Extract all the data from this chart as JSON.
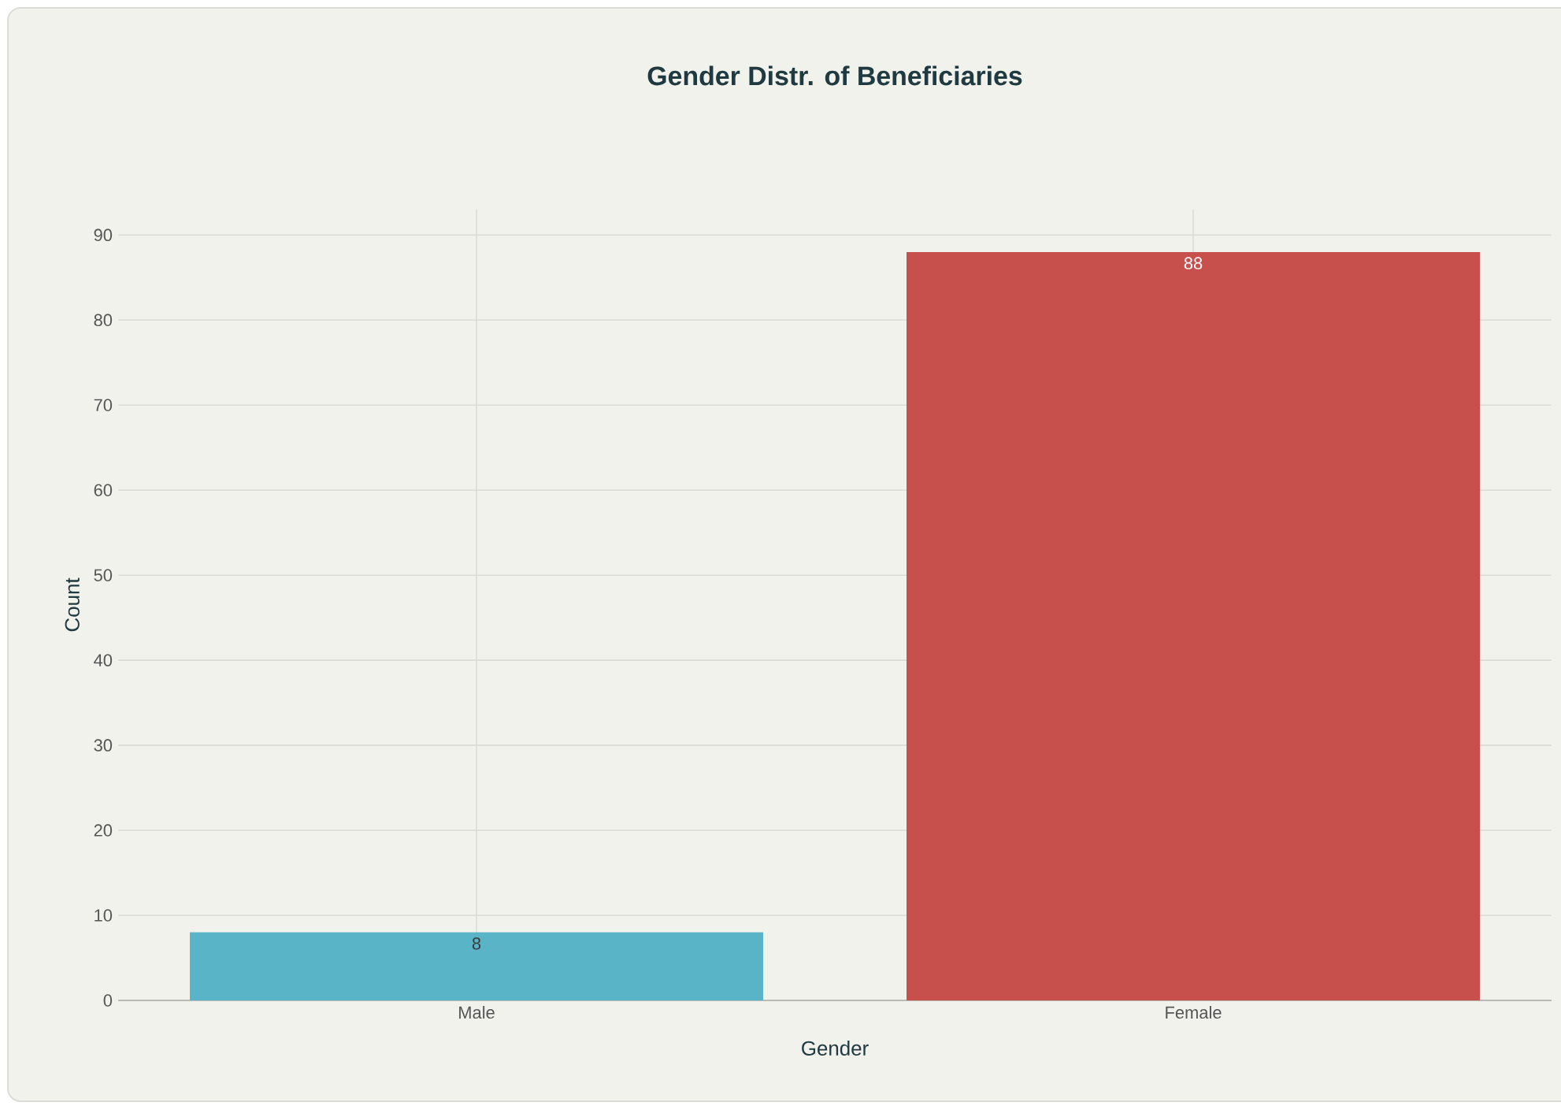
{
  "chart_data": {
    "type": "bar",
    "title": "Gender Distr. of Beneficiaries",
    "xlabel": "Gender",
    "ylabel": "Count",
    "categories": [
      "Male",
      "Female"
    ],
    "values": [
      8,
      88
    ],
    "colors": [
      "#5ab4c8",
      "#c8504c"
    ],
    "ylim": [
      0,
      93
    ],
    "yticks": [
      0,
      10,
      20,
      30,
      40,
      50,
      60,
      70,
      80,
      90
    ],
    "grid": true,
    "data_labels": true
  }
}
